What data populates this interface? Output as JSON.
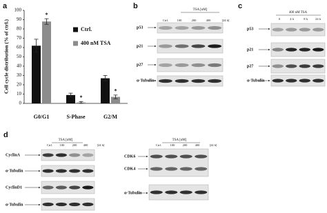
{
  "chart_data": {
    "type": "bar",
    "label": "a",
    "y_label": "Cell cycle distribution (% of ctrl.)",
    "categories": [
      "G0/G1",
      "S-Phase",
      "G2/M"
    ],
    "series": [
      {
        "name": "Ctrl.",
        "color": "#111111",
        "values": [
          62,
          9,
          27
        ],
        "errors": [
          7,
          2,
          3
        ]
      },
      {
        "name": "400 nM TSA",
        "color": "#8c8c8c",
        "values": [
          88,
          1,
          7
        ],
        "errors": [
          3,
          1,
          2
        ],
        "significance": [
          "*",
          "*",
          "*"
        ]
      }
    ],
    "ylim": [
      0,
      100
    ],
    "yticks": [
      0,
      10,
      20,
      30,
      40,
      50,
      60,
      70,
      80,
      90,
      100
    ],
    "grid": false
  },
  "blots": {
    "b": {
      "label": "b",
      "header": "TSA [nM]",
      "lanes": [
        "Ctrl.",
        "100",
        "200",
        "400",
        "[24 h]"
      ],
      "rows": [
        "p53",
        "p21",
        "p27",
        "α-Tubulin"
      ]
    },
    "c": {
      "label": "c",
      "header": "400 nM TSA",
      "lanes": [
        "0",
        "4 h",
        "8 h",
        "24 h"
      ],
      "rows": [
        "p53",
        "p21",
        "p27",
        "α-Tubulin"
      ]
    },
    "d_left": {
      "label": "d",
      "header": "TSA [nM]",
      "lanes": [
        "Ctrl.",
        "100",
        "200",
        "400",
        "[24 h]"
      ],
      "rows": [
        "CyclinA",
        "α-Tubulin",
        "CyclinD1",
        "α-Tubulin"
      ]
    },
    "d_right": {
      "header": "TSA [nM]",
      "lanes": [
        "Ctrl.",
        "100",
        "200",
        "400",
        "[24 h]"
      ],
      "rows": [
        "CDK6",
        "CDK4",
        "α-Tubulin"
      ]
    }
  }
}
